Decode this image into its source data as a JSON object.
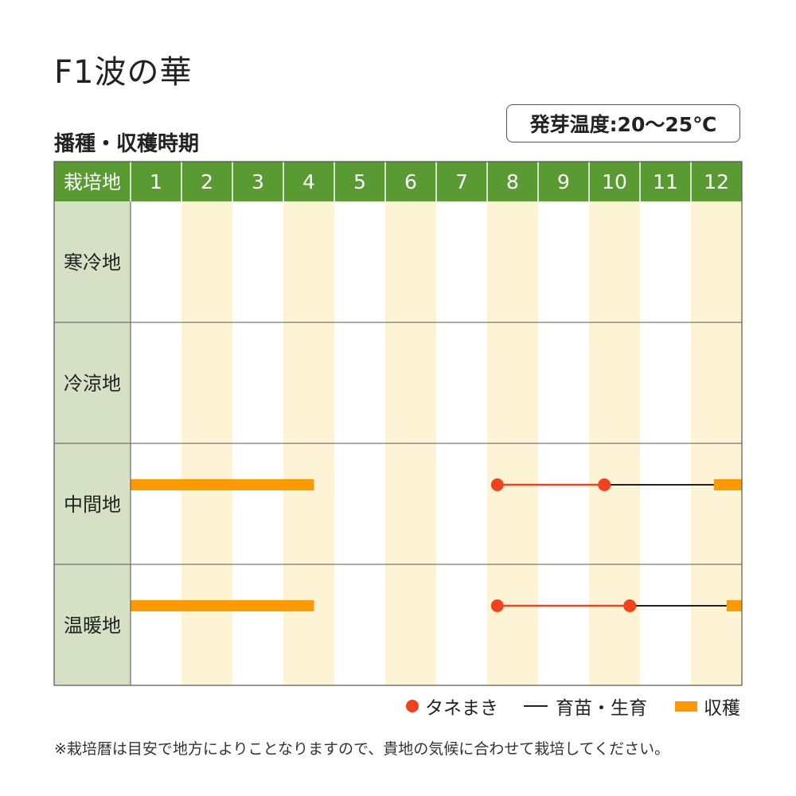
{
  "title": "F1波の華",
  "subtitle": "播種・収穫時期",
  "temperature_label": "発芽温度:20〜25℃",
  "header": {
    "corner_label": "栽培地",
    "months": [
      "1",
      "2",
      "3",
      "4",
      "5",
      "6",
      "7",
      "8",
      "9",
      "10",
      "11",
      "12"
    ]
  },
  "colors": {
    "header_green": "#5a9a33",
    "region_cell": "#d6e0c5",
    "stripe": "#fdf4d6",
    "sowing": "#f0421c",
    "growing": "#222222",
    "harvest": "#ff9900"
  },
  "regions": [
    {
      "label": "寒冷地",
      "sowing": [],
      "harvest": []
    },
    {
      "label": "冷涼地",
      "sowing": [],
      "harvest": []
    },
    {
      "label": "中間地",
      "sowing": {
        "start": 8.2,
        "end": 10.3
      },
      "growing": {
        "start": 10.3,
        "end": 12.45
      },
      "harvest": [
        {
          "start": 1,
          "end": 4.6
        },
        {
          "start": 12.45,
          "end": 13
        }
      ]
    },
    {
      "label": "温暖地",
      "sowing": {
        "start": 8.2,
        "end": 10.8
      },
      "growing": {
        "start": 10.8,
        "end": 12.7
      },
      "harvest": [
        {
          "start": 1,
          "end": 4.6
        },
        {
          "start": 12.7,
          "end": 13
        }
      ]
    }
  ],
  "legend": {
    "sowing": "タネまき",
    "growing": "育苗・生育",
    "harvest": "収穫"
  },
  "note": "※栽培暦は目安で地方によりことなりますので、貴地の気候に合わせて栽培してください。"
}
